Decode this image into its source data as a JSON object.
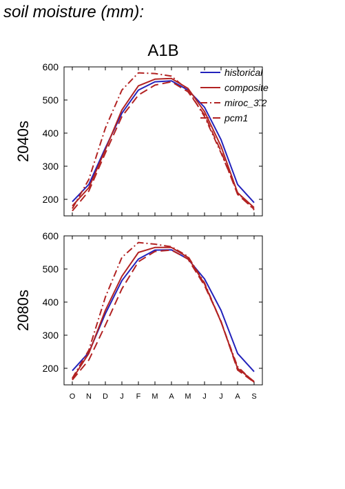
{
  "page": {
    "title": "soil moisture (mm):"
  },
  "chart_data": {
    "type": "line",
    "title": "A1B",
    "x": [
      "O",
      "N",
      "D",
      "J",
      "F",
      "M",
      "A",
      "M",
      "J",
      "J",
      "A",
      "S"
    ],
    "ylim": [
      150,
      600
    ],
    "yticks": [
      200,
      300,
      400,
      500,
      600
    ],
    "legend": {
      "placement": "top-right",
      "in_panel": 0
    },
    "colors": {
      "historical": "#2222bb",
      "scenario": "#b22222"
    },
    "panels": [
      {
        "ylabel": "2040s",
        "series": [
          {
            "name": "historical",
            "style": "solid",
            "color": "#2222bb",
            "values": [
              193,
              245,
              355,
              460,
              530,
              555,
              558,
              530,
              478,
              380,
              245,
              190
            ]
          },
          {
            "name": "composite",
            "style": "solid",
            "color": "#b22222",
            "values": [
              180,
              235,
              350,
              470,
              543,
              563,
              565,
              535,
              465,
              360,
              220,
              175
            ]
          },
          {
            "name": "miroc_3.2",
            "style": "dashdot",
            "color": "#b22222",
            "values": [
              172,
              260,
              415,
              530,
              582,
              580,
              572,
              530,
              450,
              340,
              220,
              168
            ]
          },
          {
            "name": "pcm1",
            "style": "longdash",
            "color": "#b22222",
            "values": [
              165,
              225,
              340,
              450,
              515,
              545,
              555,
              525,
              455,
              345,
              215,
              170
            ]
          }
        ]
      },
      {
        "ylabel": "2080s",
        "series": [
          {
            "name": "historical",
            "style": "solid",
            "color": "#2222bb",
            "values": [
              193,
              248,
              365,
              465,
              530,
              557,
              558,
              530,
              470,
              375,
              245,
              190
            ]
          },
          {
            "name": "composite",
            "style": "solid",
            "color": "#b22222",
            "values": [
              168,
              245,
              375,
              478,
              550,
              565,
              565,
              535,
              455,
              340,
              200,
              160
            ]
          },
          {
            "name": "miroc_3.2",
            "style": "dashdot",
            "color": "#b22222",
            "values": [
              170,
              255,
              415,
              535,
              580,
              575,
              567,
              538,
              458,
              340,
              205,
              158
            ]
          },
          {
            "name": "pcm1",
            "style": "longdash",
            "color": "#b22222",
            "values": [
              165,
              225,
              330,
              440,
              522,
              553,
              557,
              530,
              450,
              342,
              195,
              158
            ]
          }
        ]
      }
    ]
  }
}
